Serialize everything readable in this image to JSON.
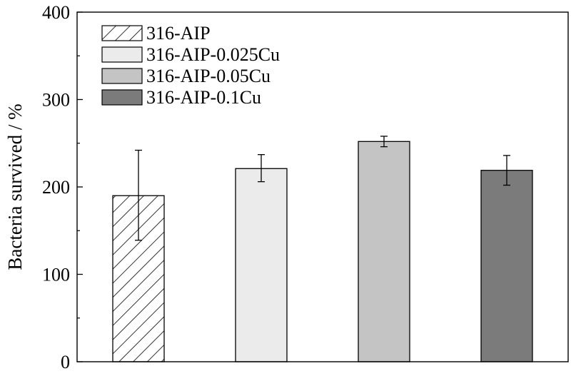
{
  "chart_data": {
    "type": "bar",
    "categories": [
      "316-AIP",
      "316-AIP-0.025Cu",
      "316-AIP-0.05Cu",
      "316-AIP-0.1Cu"
    ],
    "values": [
      190,
      221,
      252,
      219
    ],
    "error_low": [
      139,
      206,
      246,
      202
    ],
    "error_high": [
      242,
      237,
      258,
      236
    ],
    "colors": [
      "#ffffff",
      "#ebebeb",
      "#c4c4c4",
      "#7b7b7b"
    ],
    "patterns": [
      "diagonal-hatch",
      "solid",
      "solid",
      "solid"
    ],
    "title": "",
    "xlabel": "",
    "ylabel": "Bacteria survived / %",
    "ylim": [
      0,
      400
    ],
    "yticks": [
      0,
      100,
      200,
      300,
      400
    ],
    "yticks_minor": [
      50,
      150,
      250,
      350
    ],
    "legend": {
      "placement": "top-left",
      "entries": [
        "316-AIP",
        "316-AIP-0.025Cu",
        "316-AIP-0.05Cu",
        "316-AIP-0.1Cu"
      ]
    },
    "grid": false
  }
}
